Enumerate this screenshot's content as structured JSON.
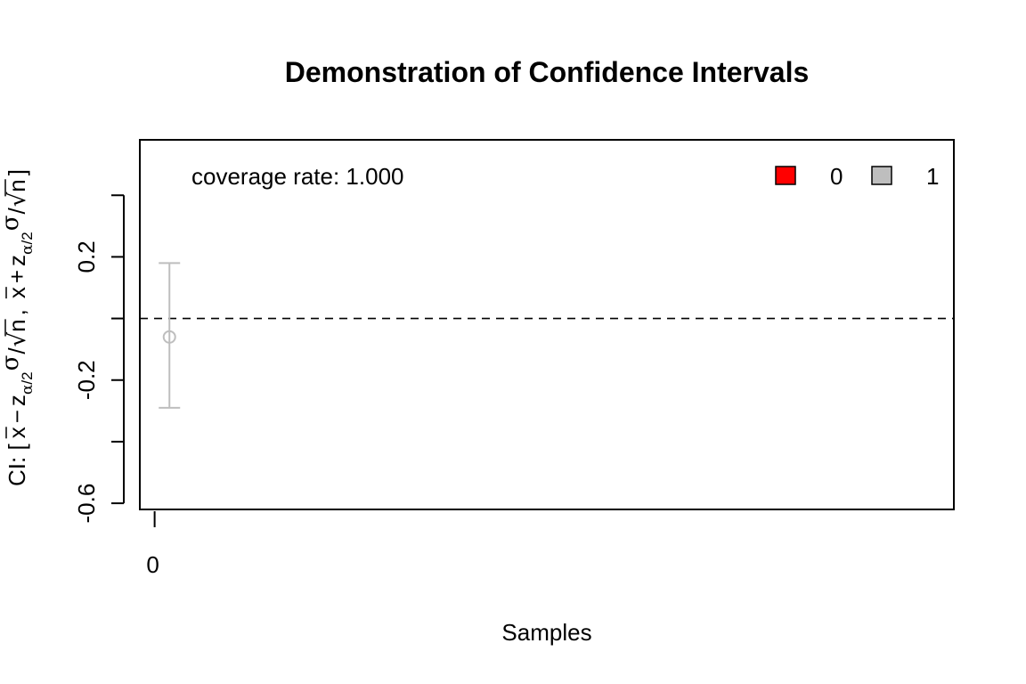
{
  "chart_data": {
    "type": "scatter",
    "title": "Demonstration of Confidence Intervals",
    "xlabel": "Samples",
    "ylabel": {
      "prefix": "CI: [",
      "xbar": "x",
      "minus": "−",
      "plus": "+",
      "z": "z",
      "alpha": "α",
      "slash": "/",
      "two": "2",
      "sigma": "σ",
      "radical": "√",
      "n": "n",
      "comma": ",",
      "close": "]"
    },
    "xlim": [
      -0.05,
      2.7
    ],
    "ylim": [
      -0.62,
      0.58
    ],
    "x_ticks": [
      0
    ],
    "x_tick_labels": [
      "0"
    ],
    "y_ticks": [
      -0.6,
      -0.4,
      -0.2,
      0.0,
      0.2,
      0.4
    ],
    "y_tick_labels": [
      "-0.6",
      "",
      "-0.2",
      "",
      "0.2",
      ""
    ],
    "reference_line": 0,
    "annotation": "coverage rate: 1.000",
    "legend": {
      "position": "top-right",
      "items": [
        {
          "label": "0",
          "color": "#ff0000"
        },
        {
          "label": "1",
          "color": "#bebebe"
        }
      ]
    },
    "points": [
      {
        "x": 0.05,
        "y": -0.06,
        "lower": -0.29,
        "upper": 0.18,
        "covered": 1
      }
    ],
    "colors": {
      "covered": "#bebebe",
      "missed": "#ff0000"
    }
  }
}
